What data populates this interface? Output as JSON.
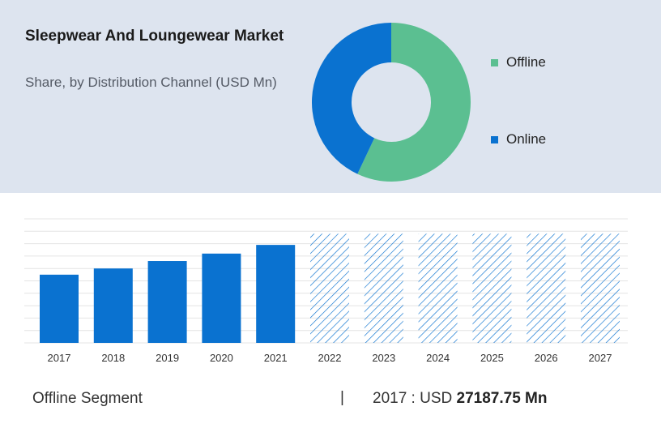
{
  "header": {
    "title": "Sleepwear And Loungewear Market",
    "subtitle": "Share, by Distribution Channel (USD Mn)"
  },
  "chart_data": [
    {
      "type": "pie",
      "variant": "donut",
      "title": "Sleepwear And Loungewear Market",
      "subtitle": "Share, by Distribution Channel (USD Mn)",
      "categories": [
        "Offline",
        "Online"
      ],
      "values": [
        57,
        43
      ],
      "colors": [
        "#5bbf91",
        "#0a72d0"
      ],
      "legend_position": "right"
    },
    {
      "type": "bar",
      "categories": [
        "2017",
        "2018",
        "2019",
        "2020",
        "2021",
        "2022",
        "2023",
        "2024",
        "2025",
        "2026",
        "2027"
      ],
      "values": [
        55,
        60,
        66,
        72,
        79,
        88,
        88,
        88,
        88,
        88,
        88
      ],
      "forecast_from": "2022",
      "forecast_style": "hatched",
      "bar_color": "#0a72d0",
      "ylim": [
        0,
        100
      ],
      "grid": true,
      "xlabel": "",
      "ylabel": ""
    }
  ],
  "footer": {
    "segment": "Offline Segment",
    "divider": "|",
    "value_prefix": "2017 : USD",
    "value": "27187.75 Mn"
  }
}
